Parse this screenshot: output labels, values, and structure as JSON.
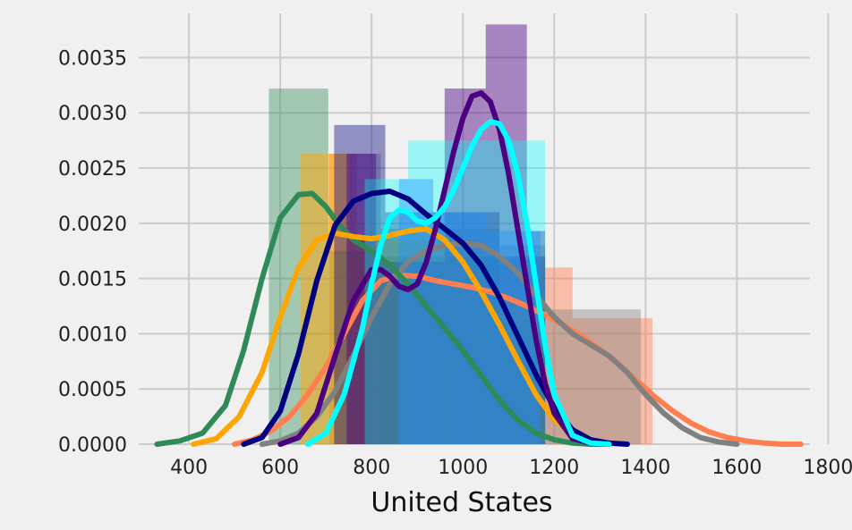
{
  "chart_data": {
    "type": "histogram-kde",
    "title": "",
    "xlabel": "United States",
    "ylabel": "",
    "xlim": [
      290,
      1760
    ],
    "ylim": [
      0,
      0.0039
    ],
    "xticks": [
      400,
      600,
      800,
      1000,
      1200,
      1400,
      1600,
      1800
    ],
    "yticks": [
      0.0,
      0.0005,
      0.001,
      0.0015,
      0.002,
      0.0025,
      0.003,
      0.0035
    ],
    "ytick_labels": [
      "0.0000",
      "0.0005",
      "0.0010",
      "0.0015",
      "0.0020",
      "0.0025",
      "0.0030",
      "0.0035"
    ],
    "grid": true,
    "legend": "none",
    "histograms": [
      {
        "color": "#ff7f50",
        "alpha": 0.45,
        "bars": [
          [
            707,
            767,
            0.00263
          ],
          [
            767,
            820,
            0.00175
          ],
          [
            820,
            1180,
            0.00168
          ],
          [
            1180,
            1240,
            0.0016
          ],
          [
            1240,
            1415,
            0.00114
          ]
        ]
      },
      {
        "color": "#808080",
        "alpha": 0.4,
        "bars": [
          [
            750,
            820,
            0.00263
          ],
          [
            820,
            1080,
            0.00195
          ],
          [
            1080,
            1180,
            0.0018
          ],
          [
            1180,
            1390,
            0.00122
          ]
        ]
      },
      {
        "color": "#2e8b57",
        "alpha": 0.4,
        "bars": [
          [
            575,
            705,
            0.00322
          ],
          [
            705,
            815,
            0.00175
          ],
          [
            815,
            1080,
            0.0017
          ],
          [
            1080,
            1180,
            0.0011
          ]
        ]
      },
      {
        "color": "#ffa500",
        "alpha": 0.5,
        "bars": [
          [
            645,
            750,
            0.00263
          ],
          [
            750,
            1050,
            0.00185
          ],
          [
            1050,
            1180,
            0.0013
          ]
        ]
      },
      {
        "color": "#000080",
        "alpha": 0.4,
        "bars": [
          [
            718,
            830,
            0.00289
          ],
          [
            830,
            1080,
            0.0021
          ],
          [
            1080,
            1180,
            0.0017
          ]
        ]
      },
      {
        "color": "#4b0082",
        "alpha": 0.45,
        "bars": [
          [
            745,
            810,
            0.00263
          ],
          [
            810,
            960,
            0.00165
          ],
          [
            960,
            1050,
            0.00322
          ],
          [
            1050,
            1140,
            0.0038
          ],
          [
            1140,
            1180,
            0.00193
          ]
        ]
      },
      {
        "color": "#00ffff",
        "alpha": 0.35,
        "bars": [
          [
            785,
            880,
            0.0024
          ],
          [
            880,
            940,
            0.00275
          ],
          [
            940,
            1180,
            0.00275
          ]
        ]
      },
      {
        "color": "#1e90ff",
        "alpha": 0.4,
        "bars": [
          [
            860,
            935,
            0.0024
          ],
          [
            935,
            1050,
            0.0021
          ],
          [
            1050,
            1170,
            0.00193
          ]
        ]
      }
    ],
    "kde_lines": [
      {
        "color": "#ff7f50",
        "x": [
          500,
          540,
          580,
          620,
          660,
          700,
          740,
          780,
          820,
          860,
          900,
          940,
          980,
          1020,
          1060,
          1100,
          1140,
          1180,
          1220,
          1260,
          1300,
          1340,
          1380,
          1420,
          1460,
          1500,
          1540,
          1580,
          1620,
          1660,
          1700,
          1740
        ],
        "y": [
          0.0,
          4e-05,
          0.00012,
          0.00025,
          0.00045,
          0.0007,
          0.001,
          0.0013,
          0.00148,
          0.00153,
          0.00152,
          0.00148,
          0.00145,
          0.00142,
          0.00138,
          0.00132,
          0.00125,
          0.00117,
          0.00108,
          0.00098,
          0.00086,
          0.00073,
          0.00058,
          0.00043,
          0.0003,
          0.00019,
          0.00011,
          6e-05,
          3e-05,
          1e-05,
          0.0,
          0.0
        ]
      },
      {
        "color": "#808080",
        "x": [
          560,
          600,
          640,
          680,
          720,
          760,
          800,
          840,
          880,
          920,
          960,
          1000,
          1040,
          1080,
          1120,
          1160,
          1200,
          1240,
          1280,
          1320,
          1360,
          1400,
          1440,
          1480,
          1520,
          1560,
          1600
        ],
        "y": [
          0.0,
          3e-05,
          0.0001,
          0.00025,
          0.00048,
          0.0008,
          0.00115,
          0.00145,
          0.00165,
          0.00175,
          0.0018,
          0.00182,
          0.0018,
          0.0017,
          0.00155,
          0.00135,
          0.00115,
          0.001,
          0.0009,
          0.0008,
          0.00065,
          0.00045,
          0.00028,
          0.00015,
          6e-05,
          2e-05,
          0.0
        ]
      },
      {
        "color": "#2e8b57",
        "x": [
          330,
          380,
          430,
          480,
          520,
          560,
          600,
          640,
          670,
          700,
          730,
          760,
          800,
          840,
          880,
          920,
          960,
          1000,
          1040,
          1080,
          1120,
          1160,
          1200,
          1240,
          1280,
          1320
        ],
        "y": [
          0.0,
          3e-05,
          0.0001,
          0.00035,
          0.00085,
          0.0015,
          0.00205,
          0.00226,
          0.00227,
          0.00215,
          0.00198,
          0.00185,
          0.00175,
          0.00162,
          0.00145,
          0.00125,
          0.00105,
          0.00085,
          0.00062,
          0.0004,
          0.00022,
          0.0001,
          4e-05,
          1e-05,
          0.0,
          0.0
        ]
      },
      {
        "color": "#ffa500",
        "x": [
          410,
          460,
          510,
          560,
          600,
          640,
          680,
          720,
          760,
          800,
          840,
          880,
          920,
          960,
          1000,
          1040,
          1080,
          1120,
          1160,
          1200,
          1240,
          1280,
          1320
        ],
        "y": [
          0.0,
          5e-05,
          0.00025,
          0.00065,
          0.00115,
          0.0016,
          0.00185,
          0.00191,
          0.00188,
          0.00186,
          0.00189,
          0.00193,
          0.00195,
          0.00185,
          0.00165,
          0.00138,
          0.00108,
          0.00076,
          0.00045,
          0.00022,
          9e-05,
          3e-05,
          0.0
        ]
      },
      {
        "color": "#000080",
        "x": [
          520,
          560,
          600,
          640,
          680,
          720,
          760,
          800,
          840,
          880,
          920,
          960,
          1000,
          1040,
          1080,
          1120,
          1160,
          1200,
          1240,
          1280,
          1320,
          1360
        ],
        "y": [
          0.0,
          6e-05,
          0.0003,
          0.00082,
          0.00148,
          0.00198,
          0.0022,
          0.00227,
          0.00229,
          0.00222,
          0.00208,
          0.00195,
          0.00182,
          0.00162,
          0.00133,
          0.00098,
          0.00063,
          0.00033,
          0.00013,
          4e-05,
          1e-05,
          0.0
        ]
      },
      {
        "color": "#4b0082",
        "x": [
          600,
          640,
          680,
          720,
          760,
          800,
          820,
          840,
          860,
          880,
          900,
          920,
          940,
          960,
          980,
          1000,
          1020,
          1040,
          1060,
          1080,
          1100,
          1120,
          1140,
          1160,
          1180,
          1200,
          1240,
          1280,
          1320
        ],
        "y": [
          0.0,
          6e-05,
          0.00028,
          0.0008,
          0.0013,
          0.00158,
          0.00158,
          0.00152,
          0.00143,
          0.0014,
          0.00145,
          0.00165,
          0.00195,
          0.0023,
          0.00265,
          0.00295,
          0.00315,
          0.00318,
          0.0031,
          0.00285,
          0.00245,
          0.00195,
          0.00145,
          0.00095,
          0.00055,
          0.00028,
          5e-05,
          1e-05,
          0.0
        ]
      },
      {
        "color": "#00ffff",
        "x": [
          660,
          700,
          740,
          780,
          800,
          820,
          840,
          860,
          880,
          900,
          920,
          940,
          960,
          980,
          1000,
          1020,
          1040,
          1060,
          1080,
          1100,
          1120,
          1140,
          1160,
          1180,
          1200,
          1240,
          1280,
          1320
        ],
        "y": [
          0.0,
          0.0001,
          0.00045,
          0.00105,
          0.00145,
          0.0018,
          0.00205,
          0.00212,
          0.0021,
          0.00202,
          0.002,
          0.00205,
          0.00215,
          0.0023,
          0.0025,
          0.0027,
          0.00285,
          0.00292,
          0.0029,
          0.00275,
          0.00245,
          0.002,
          0.00145,
          0.0009,
          0.00045,
          8e-05,
          1e-05,
          0.0
        ]
      }
    ]
  }
}
